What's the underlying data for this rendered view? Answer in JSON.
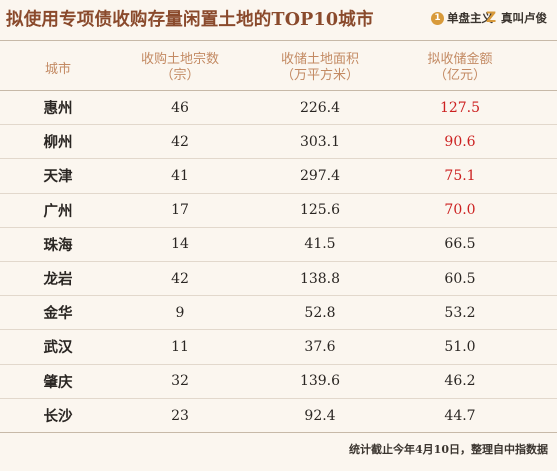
{
  "title": "拟使用专项债收购存量闲置土地的TOP10城市",
  "brand1": {
    "icon": "circle-1-icon",
    "logo_char": "1",
    "text": "单盘主义"
  },
  "brand2": {
    "icon": "z-logo-icon",
    "logo_char": "Z",
    "text": "真叫卢俊"
  },
  "columns": {
    "city": "城市",
    "count": {
      "line1": "收购土地宗数",
      "line2": "（宗）"
    },
    "area": {
      "line1": "收储土地面积",
      "line2": "（万平方米）"
    },
    "amount": {
      "line1": "拟收储金额",
      "line2": "（亿元）"
    }
  },
  "rows": [
    {
      "city": "惠州",
      "count": "46",
      "area": "226.4",
      "amount": "127.5",
      "highlight": true
    },
    {
      "city": "柳州",
      "count": "42",
      "area": "303.1",
      "amount": "90.6",
      "highlight": true
    },
    {
      "city": "天津",
      "count": "41",
      "area": "297.4",
      "amount": "75.1",
      "highlight": true
    },
    {
      "city": "广州",
      "count": "17",
      "area": "125.6",
      "amount": "70.0",
      "highlight": true
    },
    {
      "city": "珠海",
      "count": "14",
      "area": "41.5",
      "amount": "66.5",
      "highlight": false
    },
    {
      "city": "龙岩",
      "count": "42",
      "area": "138.8",
      "amount": "60.5",
      "highlight": false
    },
    {
      "city": "金华",
      "count": "9",
      "area": "52.8",
      "amount": "53.2",
      "highlight": false
    },
    {
      "city": "武汉",
      "count": "11",
      "area": "37.6",
      "amount": "51.0",
      "highlight": false
    },
    {
      "city": "肇庆",
      "count": "32",
      "area": "139.6",
      "amount": "46.2",
      "highlight": false
    },
    {
      "city": "长沙",
      "count": "23",
      "area": "92.4",
      "amount": "44.7",
      "highlight": false
    }
  ],
  "footnote": "统计截止今年4月10日，整理自中指数据",
  "colors": {
    "title": "#8a4a2c",
    "header": "#c38a63",
    "highlight": "#cc2121",
    "background": "#fbf6ef"
  }
}
